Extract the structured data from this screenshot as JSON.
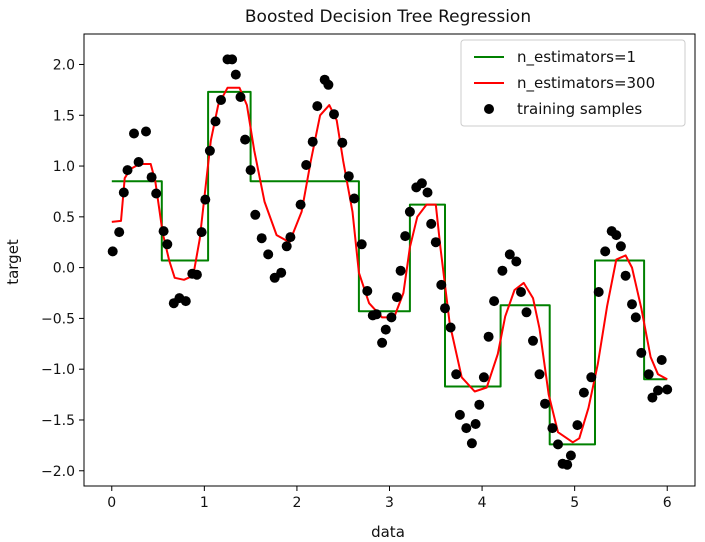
{
  "chart_data": {
    "type": "line",
    "title": "Boosted Decision Tree Regression",
    "xlabel": "data",
    "ylabel": "target",
    "xlim": [
      -0.3,
      6.3
    ],
    "ylim": [
      -2.15,
      2.3
    ],
    "grid": false,
    "legend_position": "top-right",
    "xticks": [
      0,
      1,
      2,
      3,
      4,
      5,
      6
    ],
    "xtick_labels": [
      "0",
      "1",
      "2",
      "3",
      "4",
      "5",
      "6"
    ],
    "yticks": [
      2.0,
      1.5,
      1.0,
      0.5,
      0.0,
      -0.5,
      -1.0,
      -1.5,
      -2.0
    ],
    "ytick_labels": [
      "2.0",
      "1.5",
      "1.0",
      "0.5",
      "0.0",
      "−0.5",
      "−1.0",
      "−1.5",
      "−2.0"
    ],
    "series": [
      {
        "name": "n_estimators=1",
        "kind": "step",
        "color": "#008000",
        "x": [
          0.0,
          0.54,
          0.54,
          1.04,
          1.04,
          1.5,
          1.5,
          2.67,
          2.67,
          3.22,
          3.22,
          3.6,
          3.6,
          4.2,
          4.2,
          4.73,
          4.73,
          5.22,
          5.22,
          5.75,
          5.75,
          6.0
        ],
        "y": [
          0.85,
          0.85,
          0.07,
          0.07,
          1.73,
          1.73,
          0.85,
          0.85,
          -0.43,
          -0.43,
          0.62,
          0.62,
          -1.17,
          -1.17,
          -0.37,
          -0.37,
          -1.74,
          -1.74,
          0.07,
          0.07,
          -1.1,
          -1.1
        ]
      },
      {
        "name": "n_estimators=300",
        "kind": "line",
        "color": "#ff0000",
        "x": [
          0.0,
          0.1,
          0.14,
          0.2,
          0.3,
          0.42,
          0.47,
          0.55,
          0.62,
          0.68,
          0.78,
          0.88,
          0.95,
          1.02,
          1.07,
          1.15,
          1.25,
          1.38,
          1.46,
          1.54,
          1.65,
          1.78,
          1.92,
          2.05,
          2.15,
          2.25,
          2.35,
          2.43,
          2.5,
          2.6,
          2.67,
          2.78,
          2.92,
          3.05,
          3.15,
          3.22,
          3.3,
          3.4,
          3.5,
          3.55,
          3.65,
          3.78,
          3.92,
          4.05,
          4.17,
          4.25,
          4.35,
          4.45,
          4.55,
          4.62,
          4.72,
          4.82,
          4.98,
          5.05,
          5.15,
          5.25,
          5.35,
          5.45,
          5.55,
          5.62,
          5.72,
          5.82,
          5.9,
          6.0
        ],
        "y": [
          0.45,
          0.46,
          0.88,
          0.97,
          1.02,
          1.02,
          0.85,
          0.34,
          0.07,
          -0.1,
          -0.12,
          -0.08,
          0.28,
          0.85,
          1.25,
          1.6,
          1.77,
          1.77,
          1.6,
          1.15,
          0.65,
          0.32,
          0.25,
          0.55,
          1.05,
          1.5,
          1.6,
          1.45,
          1.05,
          0.55,
          -0.05,
          -0.35,
          -0.49,
          -0.49,
          -0.25,
          0.2,
          0.5,
          0.62,
          0.62,
          0.2,
          -0.55,
          -1.08,
          -1.22,
          -1.18,
          -0.85,
          -0.48,
          -0.22,
          -0.15,
          -0.3,
          -0.6,
          -1.25,
          -1.62,
          -1.72,
          -1.68,
          -1.38,
          -0.95,
          -0.38,
          0.08,
          0.12,
          0.0,
          -0.4,
          -0.88,
          -1.05,
          -1.1
        ]
      },
      {
        "name": "training samples",
        "kind": "scatter",
        "color": "#000000",
        "x": [
          0.01,
          0.08,
          0.13,
          0.17,
          0.24,
          0.29,
          0.37,
          0.43,
          0.48,
          0.56,
          0.6,
          0.67,
          0.73,
          0.8,
          0.87,
          0.92,
          0.97,
          1.01,
          1.06,
          1.12,
          1.18,
          1.25,
          1.3,
          1.34,
          1.39,
          1.44,
          1.5,
          1.55,
          1.62,
          1.69,
          1.76,
          1.83,
          1.89,
          1.93,
          2.04,
          2.1,
          2.17,
          2.22,
          2.3,
          2.34,
          2.4,
          2.49,
          2.56,
          2.62,
          2.7,
          2.76,
          2.82,
          2.86,
          2.92,
          2.96,
          3.02,
          3.08,
          3.12,
          3.17,
          3.22,
          3.29,
          3.35,
          3.41,
          3.45,
          3.5,
          3.56,
          3.6,
          3.66,
          3.72,
          3.76,
          3.83,
          3.89,
          3.93,
          3.97,
          4.02,
          4.07,
          4.13,
          4.22,
          4.3,
          4.37,
          4.42,
          4.48,
          4.55,
          4.62,
          4.68,
          4.76,
          4.82,
          4.87,
          4.92,
          4.96,
          5.03,
          5.1,
          5.18,
          5.26,
          5.33,
          5.4,
          5.45,
          5.5,
          5.55,
          5.62,
          5.66,
          5.72,
          5.8,
          5.84,
          5.9,
          5.94,
          6.0
        ],
        "y": [
          0.16,
          0.35,
          0.74,
          0.96,
          1.32,
          1.04,
          1.34,
          0.89,
          0.73,
          0.36,
          0.23,
          -0.35,
          -0.3,
          -0.33,
          -0.06,
          -0.07,
          0.35,
          0.67,
          1.15,
          1.44,
          1.65,
          2.05,
          2.05,
          1.9,
          1.68,
          1.26,
          0.96,
          0.52,
          0.29,
          0.13,
          -0.1,
          -0.05,
          0.21,
          0.3,
          0.62,
          1.01,
          1.24,
          1.59,
          1.85,
          1.8,
          1.51,
          1.23,
          0.9,
          0.68,
          0.23,
          -0.23,
          -0.47,
          -0.46,
          -0.74,
          -0.61,
          -0.49,
          -0.29,
          -0.03,
          0.31,
          0.55,
          0.79,
          0.83,
          0.74,
          0.43,
          0.25,
          -0.17,
          -0.4,
          -0.59,
          -1.05,
          -1.45,
          -1.58,
          -1.73,
          -1.54,
          -1.35,
          -1.08,
          -0.68,
          -0.33,
          -0.03,
          0.13,
          0.06,
          -0.24,
          -0.44,
          -0.72,
          -1.05,
          -1.34,
          -1.58,
          -1.74,
          -1.93,
          -1.94,
          -1.85,
          -1.55,
          -1.23,
          -1.08,
          -0.24,
          0.16,
          0.36,
          0.32,
          0.21,
          -0.08,
          -0.36,
          -0.49,
          -0.84,
          -1.05,
          -1.28,
          -1.21,
          -0.91,
          -1.2
        ]
      }
    ]
  }
}
